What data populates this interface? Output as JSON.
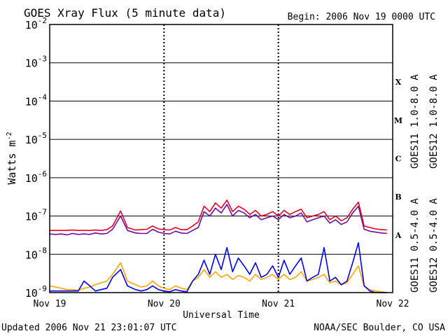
{
  "header": {
    "title": "GOES Xray Flux (5 minute data)",
    "begin": "Begin:  2006 Nov 19 0000 UTC"
  },
  "footer": {
    "updated": "Updated 2006 Nov 21 23:01:07 UTC",
    "credit": "NOAA/SEC Boulder, CO USA"
  },
  "chart_data": {
    "type": "line",
    "title": "GOES Xray Flux (5 minute data)",
    "xlabel": "Universal Time",
    "ylabel_base": "Watts m",
    "ylabel_exp": "-2",
    "yscale": "log",
    "ylim": [
      1e-09,
      0.01
    ],
    "xlim": [
      0,
      3
    ],
    "x_unit": "days since 2006 Nov 19 0000 UTC",
    "x_ticks": [
      {
        "x": 0,
        "label": "Nov 19"
      },
      {
        "x": 1,
        "label": "Nov 20"
      },
      {
        "x": 2,
        "label": "Nov 21"
      },
      {
        "x": 3,
        "label": "Nov 22"
      }
    ],
    "y_ticks": [
      {
        "exp": -2,
        "base": "10",
        "sup": "-2"
      },
      {
        "exp": -3,
        "base": "10",
        "sup": "-3"
      },
      {
        "exp": -4,
        "base": "10",
        "sup": "-4"
      },
      {
        "exp": -5,
        "base": "10",
        "sup": "-5"
      },
      {
        "exp": -6,
        "base": "10",
        "sup": "-6"
      },
      {
        "exp": -7,
        "base": "10",
        "sup": "-7"
      },
      {
        "exp": -8,
        "base": "10",
        "sup": "-8"
      },
      {
        "exp": -9,
        "base": "10",
        "sup": "-9"
      }
    ],
    "flare_classes": [
      {
        "label": "X",
        "exp": -3.5
      },
      {
        "label": "M",
        "exp": -4.5
      },
      {
        "label": "C",
        "exp": -5.5
      },
      {
        "label": "B",
        "exp": -6.5
      },
      {
        "label": "A",
        "exp": -7.5
      }
    ],
    "grid": {
      "horizontal": true,
      "vertical_dashed": true
    },
    "legend_position": "right",
    "series": [
      {
        "name": "GOES11 1.0-8.0 A",
        "color": "#6a0dad",
        "points": [
          [
            0,
            3.4e-08
          ],
          [
            0.05,
            3.3e-08
          ],
          [
            0.1,
            3.4e-08
          ],
          [
            0.15,
            3.2e-08
          ],
          [
            0.2,
            3.5e-08
          ],
          [
            0.25,
            3.3e-08
          ],
          [
            0.3,
            3.4e-08
          ],
          [
            0.35,
            3.3e-08
          ],
          [
            0.4,
            3.6e-08
          ],
          [
            0.45,
            3.4e-08
          ],
          [
            0.5,
            3.5e-08
          ],
          [
            0.55,
            4.5e-08
          ],
          [
            0.62,
            1e-07
          ],
          [
            0.68,
            4.2e-08
          ],
          [
            0.75,
            3.6e-08
          ],
          [
            0.8,
            3.5e-08
          ],
          [
            0.85,
            3.5e-08
          ],
          [
            0.9,
            4.5e-08
          ],
          [
            0.95,
            3.8e-08
          ],
          [
            1.0,
            3.5e-08
          ],
          [
            1.05,
            3.4e-08
          ],
          [
            1.1,
            4e-08
          ],
          [
            1.15,
            3.6e-08
          ],
          [
            1.2,
            3.5e-08
          ],
          [
            1.25,
            4.2e-08
          ],
          [
            1.3,
            5e-08
          ],
          [
            1.35,
            1.3e-07
          ],
          [
            1.4,
            1e-07
          ],
          [
            1.45,
            1.6e-07
          ],
          [
            1.5,
            1.2e-07
          ],
          [
            1.55,
            2e-07
          ],
          [
            1.6,
            1e-07
          ],
          [
            1.65,
            1.4e-07
          ],
          [
            1.7,
            1.2e-07
          ],
          [
            1.75,
            9e-08
          ],
          [
            1.8,
            1.1e-07
          ],
          [
            1.85,
            8e-08
          ],
          [
            1.9,
            9e-08
          ],
          [
            1.95,
            1e-07
          ],
          [
            2.0,
            8e-08
          ],
          [
            2.05,
            1.1e-07
          ],
          [
            2.1,
            9e-08
          ],
          [
            2.15,
            1e-07
          ],
          [
            2.2,
            1.2e-07
          ],
          [
            2.25,
            7e-08
          ],
          [
            2.3,
            8e-08
          ],
          [
            2.35,
            9e-08
          ],
          [
            2.4,
            1e-07
          ],
          [
            2.45,
            6.5e-08
          ],
          [
            2.5,
            8e-08
          ],
          [
            2.55,
            6e-08
          ],
          [
            2.6,
            7e-08
          ],
          [
            2.65,
            1.2e-07
          ],
          [
            2.7,
            1.8e-07
          ],
          [
            2.75,
            4.5e-08
          ],
          [
            2.8,
            4e-08
          ],
          [
            2.85,
            3.8e-08
          ],
          [
            2.9,
            3.6e-08
          ],
          [
            2.95,
            3.5e-08
          ]
        ]
      },
      {
        "name": "GOES12 1.0-8.0 A",
        "color": "#e8001c",
        "points": [
          [
            0,
            4.2e-08
          ],
          [
            0.05,
            4.2e-08
          ],
          [
            0.1,
            4.2e-08
          ],
          [
            0.15,
            4.2e-08
          ],
          [
            0.2,
            4.3e-08
          ],
          [
            0.25,
            4.2e-08
          ],
          [
            0.3,
            4.2e-08
          ],
          [
            0.35,
            4.2e-08
          ],
          [
            0.4,
            4.3e-08
          ],
          [
            0.45,
            4.2e-08
          ],
          [
            0.5,
            4.4e-08
          ],
          [
            0.55,
            5.5e-08
          ],
          [
            0.62,
            1.35e-07
          ],
          [
            0.68,
            5e-08
          ],
          [
            0.75,
            4.3e-08
          ],
          [
            0.8,
            4.4e-08
          ],
          [
            0.85,
            4.5e-08
          ],
          [
            0.9,
            5.5e-08
          ],
          [
            0.95,
            4.6e-08
          ],
          [
            1.0,
            4.4e-08
          ],
          [
            1.05,
            4.3e-08
          ],
          [
            1.1,
            5e-08
          ],
          [
            1.15,
            4.4e-08
          ],
          [
            1.2,
            4.4e-08
          ],
          [
            1.25,
            5.5e-08
          ],
          [
            1.3,
            7e-08
          ],
          [
            1.35,
            1.8e-07
          ],
          [
            1.4,
            1.3e-07
          ],
          [
            1.45,
            2.2e-07
          ],
          [
            1.5,
            1.6e-07
          ],
          [
            1.55,
            2.6e-07
          ],
          [
            1.6,
            1.3e-07
          ],
          [
            1.65,
            1.8e-07
          ],
          [
            1.7,
            1.5e-07
          ],
          [
            1.75,
            1.1e-07
          ],
          [
            1.8,
            1.4e-07
          ],
          [
            1.85,
            1e-07
          ],
          [
            1.9,
            1.1e-07
          ],
          [
            1.95,
            1.3e-07
          ],
          [
            2.0,
            1e-07
          ],
          [
            2.05,
            1.4e-07
          ],
          [
            2.1,
            1.1e-07
          ],
          [
            2.15,
            1.3e-07
          ],
          [
            2.2,
            1.5e-07
          ],
          [
            2.25,
            9e-08
          ],
          [
            2.3,
            1e-07
          ],
          [
            2.35,
            1.1e-07
          ],
          [
            2.4,
            1.3e-07
          ],
          [
            2.45,
            8e-08
          ],
          [
            2.5,
            1e-07
          ],
          [
            2.55,
            7.5e-08
          ],
          [
            2.6,
            9e-08
          ],
          [
            2.65,
            1.5e-07
          ],
          [
            2.7,
            2.3e-07
          ],
          [
            2.75,
            5.5e-08
          ],
          [
            2.8,
            5e-08
          ],
          [
            2.85,
            4.6e-08
          ],
          [
            2.9,
            4.4e-08
          ],
          [
            2.95,
            4.3e-08
          ]
        ]
      },
      {
        "name": "GOES11 0.5-4.0 A",
        "color": "#ffa500",
        "points": [
          [
            0,
            1.5e-09
          ],
          [
            0.05,
            1.4e-09
          ],
          [
            0.1,
            1.3e-09
          ],
          [
            0.15,
            1.2e-09
          ],
          [
            0.2,
            1.2e-09
          ],
          [
            0.25,
            1.15e-09
          ],
          [
            0.3,
            1.3e-09
          ],
          [
            0.35,
            1.4e-09
          ],
          [
            0.4,
            1.6e-09
          ],
          [
            0.45,
            1.8e-09
          ],
          [
            0.5,
            2e-09
          ],
          [
            0.55,
            3e-09
          ],
          [
            0.62,
            6e-09
          ],
          [
            0.68,
            2e-09
          ],
          [
            0.75,
            1.6e-09
          ],
          [
            0.8,
            1.4e-09
          ],
          [
            0.85,
            1.5e-09
          ],
          [
            0.9,
            2e-09
          ],
          [
            0.95,
            1.5e-09
          ],
          [
            1.0,
            1.3e-09
          ],
          [
            1.05,
            1.2e-09
          ],
          [
            1.1,
            1.5e-09
          ],
          [
            1.15,
            1.3e-09
          ],
          [
            1.2,
            1.2e-09
          ],
          [
            1.25,
            2e-09
          ],
          [
            1.3,
            2.5e-09
          ],
          [
            1.35,
            4e-09
          ],
          [
            1.4,
            2.5e-09
          ],
          [
            1.45,
            3.5e-09
          ],
          [
            1.5,
            2.5e-09
          ],
          [
            1.55,
            3e-09
          ],
          [
            1.6,
            2.2e-09
          ],
          [
            1.65,
            2.8e-09
          ],
          [
            1.7,
            2.5e-09
          ],
          [
            1.75,
            2e-09
          ],
          [
            1.8,
            3e-09
          ],
          [
            1.85,
            2.2e-09
          ],
          [
            1.9,
            2.5e-09
          ],
          [
            1.95,
            3e-09
          ],
          [
            2.0,
            2.2e-09
          ],
          [
            2.05,
            3e-09
          ],
          [
            2.1,
            2.2e-09
          ],
          [
            2.15,
            2.5e-09
          ],
          [
            2.2,
            3.5e-09
          ],
          [
            2.25,
            2e-09
          ],
          [
            2.3,
            2.2e-09
          ],
          [
            2.35,
            2.5e-09
          ],
          [
            2.4,
            3e-09
          ],
          [
            2.45,
            1.8e-09
          ],
          [
            2.5,
            2e-09
          ],
          [
            2.55,
            1.6e-09
          ],
          [
            2.6,
            1.8e-09
          ],
          [
            2.65,
            3e-09
          ],
          [
            2.7,
            5e-09
          ],
          [
            2.75,
            1.5e-09
          ],
          [
            2.8,
            1.2e-09
          ],
          [
            2.85,
            1.1e-09
          ],
          [
            2.9,
            1.05e-09
          ],
          [
            2.95,
            1e-09
          ]
        ]
      },
      {
        "name": "GOES12 0.5-4.0 A",
        "color": "#0000ee",
        "points": [
          [
            0,
            1.1e-09
          ],
          [
            0.05,
            1.1e-09
          ],
          [
            0.1,
            1.1e-09
          ],
          [
            0.15,
            1.1e-09
          ],
          [
            0.2,
            1.1e-09
          ],
          [
            0.25,
            1.1e-09
          ],
          [
            0.3,
            2e-09
          ],
          [
            0.35,
            1.5e-09
          ],
          [
            0.4,
            1.1e-09
          ],
          [
            0.45,
            1.2e-09
          ],
          [
            0.5,
            1.3e-09
          ],
          [
            0.55,
            2.5e-09
          ],
          [
            0.62,
            4e-09
          ],
          [
            0.68,
            1.5e-09
          ],
          [
            0.75,
            1.2e-09
          ],
          [
            0.8,
            1.1e-09
          ],
          [
            0.85,
            1.2e-09
          ],
          [
            0.9,
            1.5e-09
          ],
          [
            0.95,
            1.2e-09
          ],
          [
            1.0,
            1.1e-09
          ],
          [
            1.05,
            1.05e-09
          ],
          [
            1.1,
            1.2e-09
          ],
          [
            1.15,
            1.1e-09
          ],
          [
            1.2,
            1.05e-09
          ],
          [
            1.25,
            2e-09
          ],
          [
            1.3,
            3e-09
          ],
          [
            1.35,
            7e-09
          ],
          [
            1.4,
            3e-09
          ],
          [
            1.45,
            1e-08
          ],
          [
            1.5,
            4e-09
          ],
          [
            1.55,
            1.5e-08
          ],
          [
            1.6,
            3.5e-09
          ],
          [
            1.65,
            8e-09
          ],
          [
            1.7,
            5e-09
          ],
          [
            1.75,
            3e-09
          ],
          [
            1.8,
            6e-09
          ],
          [
            1.85,
            2.5e-09
          ],
          [
            1.9,
            3e-09
          ],
          [
            1.95,
            5e-09
          ],
          [
            2.0,
            2.5e-09
          ],
          [
            2.05,
            7e-09
          ],
          [
            2.1,
            3e-09
          ],
          [
            2.15,
            5e-09
          ],
          [
            2.2,
            8e-09
          ],
          [
            2.25,
            2e-09
          ],
          [
            2.3,
            2.5e-09
          ],
          [
            2.35,
            3e-09
          ],
          [
            2.4,
            1.5e-08
          ],
          [
            2.45,
            2e-09
          ],
          [
            2.5,
            2.5e-09
          ],
          [
            2.55,
            1.6e-09
          ],
          [
            2.6,
            2e-09
          ],
          [
            2.65,
            6e-09
          ],
          [
            2.7,
            2e-08
          ],
          [
            2.75,
            1.5e-09
          ],
          [
            2.8,
            1.1e-09
          ],
          [
            2.85,
            1e-09
          ],
          [
            2.9,
            1e-09
          ],
          [
            2.95,
            1e-09
          ]
        ]
      }
    ]
  }
}
